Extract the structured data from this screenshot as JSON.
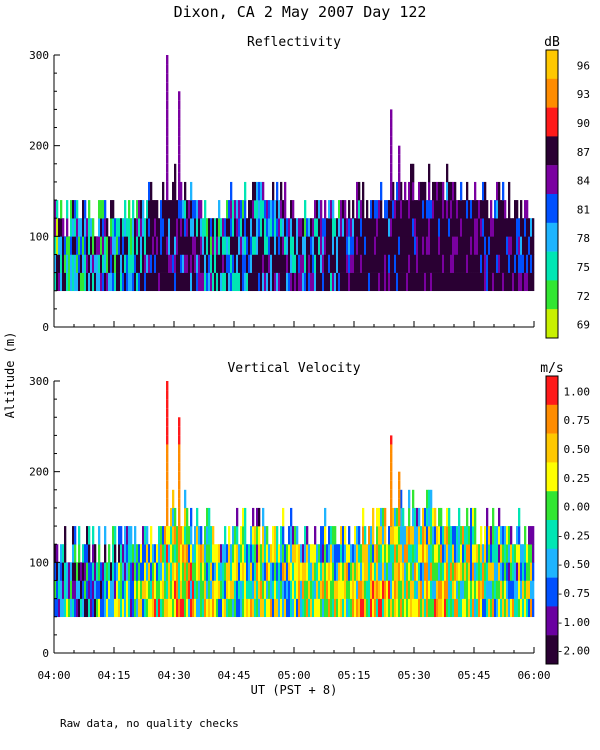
{
  "chart_data": {
    "type": "heatmap",
    "title": "Dixon, CA  2 May 2007  Day 122",
    "ylabel": "Altitude (m)",
    "xlabel": "UT  (PST + 8)",
    "footnote": "Raw data, no quality checks",
    "x_ticks": [
      "04:00",
      "04:15",
      "04:30",
      "04:45",
      "05:00",
      "05:15",
      "05:30",
      "05:45",
      "06:00"
    ],
    "x_range_minutes": [
      0,
      120
    ],
    "y_ticks": [
      0,
      100,
      200,
      300
    ],
    "ylim": [
      0,
      300
    ],
    "panels": [
      {
        "title": "Reflectivity",
        "unit": "dB",
        "colorbar_labels": [
          "96",
          "93",
          "90",
          "87",
          "84",
          "81",
          "78",
          "75",
          "72",
          "69"
        ],
        "colorbar_colors": [
          "#ffc800",
          "#ff8c00",
          "#ff1a1a",
          "#2a0033",
          "#7a00a0",
          "#0050ff",
          "#1eb4ff",
          "#00e6b4",
          "#32e632",
          "#c8f000"
        ],
        "data_altitude_range": [
          40,
          300
        ],
        "profile": {
          "minutes": [
            0,
            10,
            20,
            27,
            30,
            40,
            50,
            60,
            70,
            80,
            90,
            100,
            110,
            120
          ],
          "top_m": [
            115,
            110,
            120,
            135,
            150,
            118,
            140,
            120,
            122,
            132,
            155,
            140,
            130,
            120
          ],
          "intensity": [
            0.35,
            0.35,
            0.4,
            0.7,
            0.6,
            0.4,
            0.5,
            0.5,
            0.45,
            0.7,
            0.75,
            0.8,
            0.7,
            0.65
          ]
        },
        "plumes": [
          {
            "minute": 28,
            "top_m": 300
          },
          {
            "minute": 31,
            "top_m": 260
          },
          {
            "minute": 84,
            "top_m": 240
          },
          {
            "minute": 86,
            "top_m": 200
          }
        ]
      },
      {
        "title": "Vertical Velocity",
        "unit": "m/s",
        "colorbar_labels": [
          "1.00",
          "0.75",
          "0.50",
          "0.25",
          "0.00",
          "-0.25",
          "-0.50",
          "-0.75",
          "-1.00",
          "-2.00"
        ],
        "colorbar_colors": [
          "#ff1a1a",
          "#ff8c00",
          "#ffc800",
          "#ffff00",
          "#32e632",
          "#00e6b4",
          "#1eb4ff",
          "#0050ff",
          "#6a00a0",
          "#2a0033"
        ],
        "data_altitude_range": [
          40,
          300
        ],
        "profile": {
          "minutes": [
            0,
            10,
            20,
            27,
            30,
            40,
            50,
            60,
            70,
            80,
            90,
            100,
            110,
            120
          ],
          "top_m": [
            115,
            110,
            120,
            135,
            150,
            118,
            140,
            120,
            122,
            132,
            155,
            140,
            130,
            120
          ],
          "intensity": [
            0.15,
            0.2,
            0.35,
            0.6,
            0.7,
            0.4,
            0.45,
            0.5,
            0.45,
            0.6,
            0.55,
            0.55,
            0.45,
            0.4
          ]
        },
        "plumes": [
          {
            "minute": 28,
            "top_m": 300
          },
          {
            "minute": 31,
            "top_m": 260
          },
          {
            "minute": 84,
            "top_m": 240
          },
          {
            "minute": 86,
            "top_m": 200
          }
        ]
      }
    ]
  }
}
